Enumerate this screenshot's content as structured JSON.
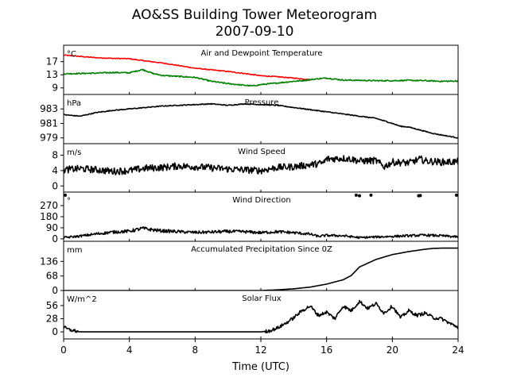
{
  "chart_data": {
    "type": "line",
    "title": "AO&SS Building Tower Meteorogram",
    "subtitle": "2007-09-10",
    "xlabel": "Time (UTC)",
    "xlim": [
      0,
      24
    ],
    "xticks": [
      "0",
      "4",
      "8",
      "12",
      "16",
      "20",
      "24"
    ],
    "panels": [
      {
        "name": "Air and Dewpoint Temperature",
        "unit": "°C",
        "ylim": [
          7,
          22
        ],
        "yticks": [
          "9",
          "13",
          "17"
        ],
        "series": [
          {
            "color": "#ff0000",
            "style": "line",
            "x": [
              0,
              1,
              2,
              3,
              4,
              5,
              6,
              7,
              8,
              9,
              10,
              11,
              12,
              13,
              14,
              15
            ],
            "y": [
              19.0,
              18.6,
              18.2,
              18.0,
              17.9,
              17.2,
              16.6,
              15.8,
              15.0,
              14.5,
              14.0,
              13.4,
              12.7,
              12.4,
              12.0,
              11.5
            ]
          },
          {
            "color": "#008000",
            "style": "line",
            "x": [
              0,
              1,
              2,
              3,
              4,
              4.8,
              5.5,
              6,
              7,
              8,
              9,
              10,
              11,
              11.5,
              12,
              13,
              14,
              14.5,
              15,
              15.5,
              16,
              17,
              18,
              19,
              20,
              21,
              22,
              23,
              24
            ],
            "y": [
              13.3,
              13.4,
              13.5,
              13.7,
              13.6,
              14.6,
              13.3,
              12.8,
              12.5,
              12.2,
              11.0,
              10.3,
              9.8,
              9.6,
              10.0,
              10.5,
              11.0,
              11.2,
              11.5,
              11.8,
              12.0,
              11.4,
              11.3,
              11.2,
              11.2,
              11.3,
              11.2,
              11.0,
              11.1
            ]
          }
        ]
      },
      {
        "name": "Pressure",
        "unit": "hPa",
        "ylim": [
          978.2,
          985.0
        ],
        "yticks": [
          "979",
          "981",
          "983"
        ],
        "series": [
          {
            "color": "#000000",
            "style": "line",
            "x": [
              0,
              1,
              2,
              3,
              4,
              5,
              6,
              7,
              8,
              9,
              10,
              11,
              12,
              13,
              14,
              15,
              16,
              17,
              18,
              19,
              20,
              20.5,
              21,
              21.5,
              22,
              22.5,
              23,
              24
            ],
            "y": [
              982.2,
              982.0,
              982.5,
              982.8,
              983.0,
              983.2,
              983.4,
              983.5,
              983.6,
              983.7,
              983.5,
              983.7,
              983.6,
              983.5,
              983.2,
              982.9,
              982.6,
              982.3,
              982.0,
              981.7,
              981.0,
              980.6,
              980.5,
              980.2,
              979.9,
              979.6,
              979.4,
              979.0
            ]
          }
        ]
      },
      {
        "name": "Wind Speed",
        "unit": "m/s",
        "ylim": [
          -1.6,
          11.0
        ],
        "yticks": [
          "0",
          "4",
          "8"
        ],
        "series": [
          {
            "color": "#000000",
            "style": "line",
            "x": [
              0,
              1,
              2,
              3,
              4,
              5,
              6,
              7,
              8,
              9,
              10,
              11,
              12,
              13,
              14,
              15,
              15.8,
              16,
              17,
              17.5,
              18,
              19,
              19.5,
              20,
              21,
              21.7,
              22,
              23,
              24
            ],
            "y": [
              4.2,
              4.5,
              4.2,
              3.8,
              4.0,
              4.6,
              4.8,
              5.2,
              5.0,
              4.7,
              4.4,
              4.2,
              4.0,
              4.8,
              5.0,
              5.5,
              6.0,
              7.0,
              7.2,
              7.0,
              6.5,
              6.6,
              5.0,
              6.2,
              6.0,
              7.0,
              6.5,
              6.2,
              6.3
            ]
          }
        ]
      },
      {
        "name": "Wind Direction",
        "unit": "°",
        "ylim": [
          -20,
          380
        ],
        "yticks": [
          "0",
          "90",
          "180",
          "270"
        ],
        "series": [
          {
            "color": "#000000",
            "style": "line",
            "x": [
              0,
              1,
              2,
              3,
              4,
              4.8,
              5.5,
              6,
              7,
              8,
              9,
              10,
              11,
              12,
              13,
              14,
              15,
              15.5,
              16,
              17,
              18,
              19,
              20,
              21,
              22,
              23,
              24
            ],
            "y": [
              10,
              22,
              40,
              55,
              62,
              85,
              72,
              65,
              58,
              52,
              55,
              60,
              58,
              50,
              58,
              50,
              38,
              20,
              28,
              25,
              10,
              15,
              20,
              25,
              30,
              25,
              15
            ]
          },
          {
            "color": "#000000",
            "style": "dots",
            "x": [
              0.1,
              17.8,
              18,
              18.7,
              21.6,
              21.7,
              23.9
            ],
            "y": [
              355,
              355,
              350,
              355,
              350,
              352,
              355
            ]
          }
        ]
      },
      {
        "name": "Accumulated Precipitation Since 0Z",
        "unit": "mm",
        "ylim": [
          0,
          230
        ],
        "yticks": [
          "0",
          "68",
          "136"
        ],
        "series": [
          {
            "color": "#000000",
            "style": "line",
            "x": [
              0,
              11,
              12,
              13,
              14,
              15,
              16,
              17,
              17.5,
              18,
              19,
              20,
              21,
              22,
              22.5,
              23,
              24
            ],
            "y": [
              0,
              0,
              0,
              3,
              8,
              16,
              30,
              50,
              70,
              110,
              145,
              168,
              182,
              193,
              197,
              198,
              198
            ]
          }
        ]
      },
      {
        "name": "Solar Flux",
        "unit": "W/m^2",
        "ylim": [
          -15,
          88
        ],
        "yticks": [
          "0",
          "28",
          "56"
        ],
        "series": [
          {
            "color": "#000000",
            "style": "line",
            "x": [
              0,
              0.3,
              0.7,
              1,
              2,
              3,
              4,
              5,
              6,
              7,
              8,
              9,
              10,
              11,
              11.5,
              12,
              12.5,
              13,
              13.5,
              14,
              14.5,
              15,
              15.5,
              16,
              16.5,
              17,
              17.5,
              18,
              18.5,
              19,
              19.5,
              20,
              20.5,
              21,
              21.5,
              22,
              22.5,
              23,
              23.5,
              24
            ],
            "y": [
              10,
              5,
              2,
              0,
              0,
              0,
              0,
              0,
              0,
              0,
              0,
              0,
              0,
              0,
              0,
              0,
              2,
              8,
              18,
              30,
              45,
              55,
              35,
              42,
              28,
              55,
              45,
              65,
              50,
              60,
              40,
              55,
              30,
              45,
              35,
              40,
              30,
              28,
              18,
              10
            ]
          }
        ]
      }
    ]
  }
}
